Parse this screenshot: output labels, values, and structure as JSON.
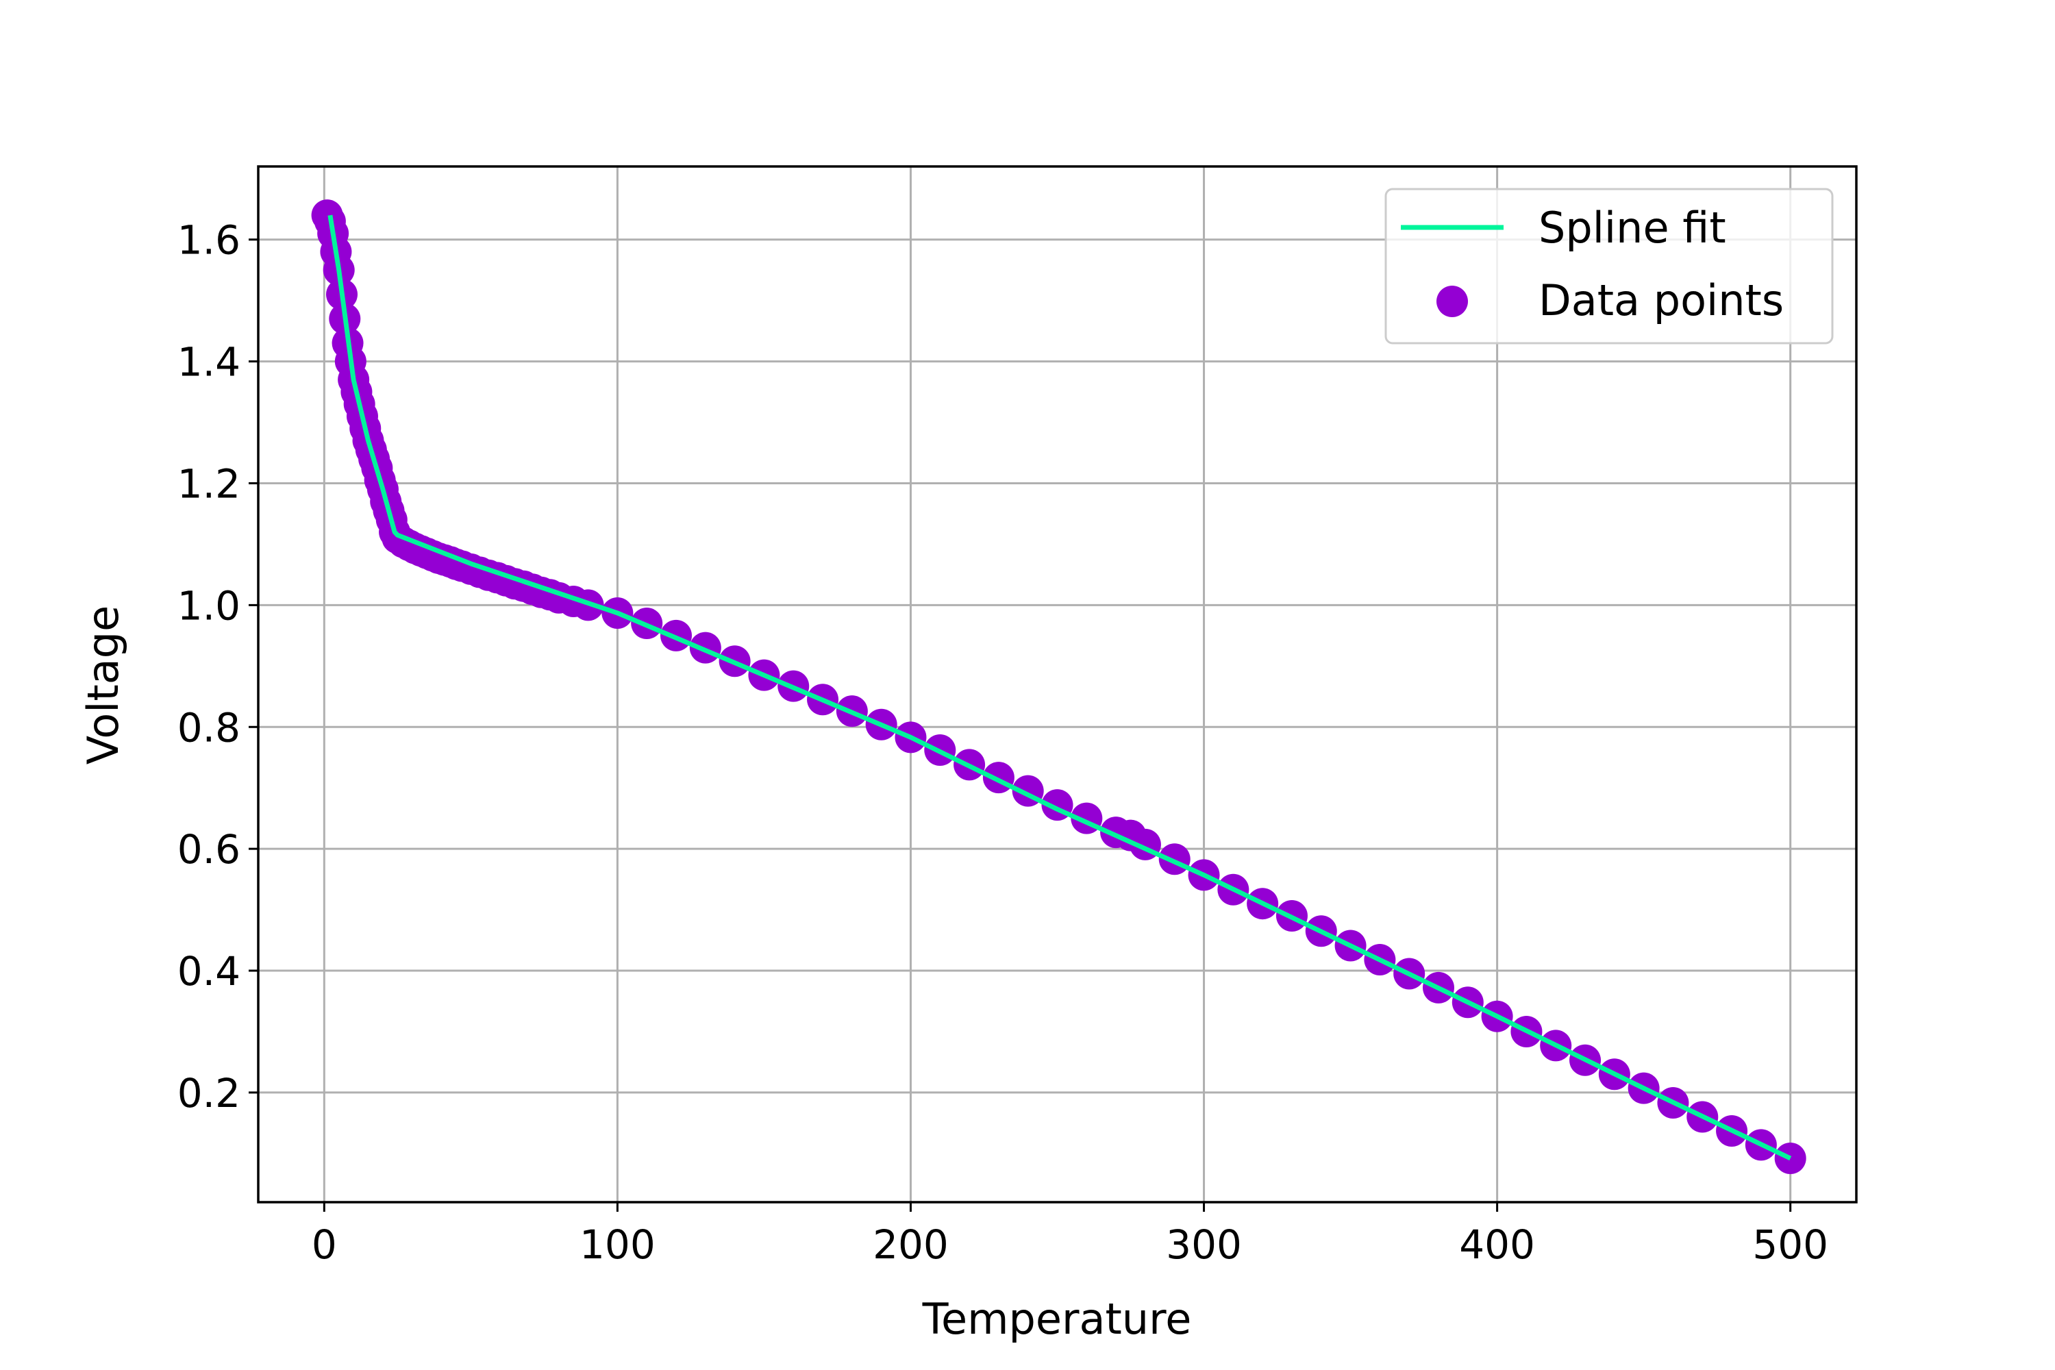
{
  "chart_data": {
    "type": "scatter",
    "title": "",
    "xlabel": "Temperature",
    "ylabel": "Voltage",
    "xlim": [
      -22.5,
      522.5
    ],
    "ylim": [
      0.02,
      1.72
    ],
    "xticks": [
      0,
      100,
      200,
      300,
      400,
      500
    ],
    "yticks": [
      0.2,
      0.4,
      0.6,
      0.8,
      1.0,
      1.2,
      1.4,
      1.6
    ],
    "xtick_labels": [
      "0",
      "100",
      "200",
      "300",
      "400",
      "500"
    ],
    "ytick_labels": [
      "0.2",
      "0.4",
      "0.6",
      "0.8",
      "1.0",
      "1.2",
      "1.4",
      "1.6"
    ],
    "grid": true,
    "legend_position": "top-right",
    "series": [
      {
        "name": "Spline fit",
        "kind": "line",
        "color": "#00f59b",
        "x": [
          2,
          5,
          10,
          15,
          20,
          24,
          25,
          50,
          100,
          150,
          200,
          250,
          300,
          350,
          400,
          450,
          500
        ],
        "y": [
          1.64,
          1.55,
          1.37,
          1.27,
          1.19,
          1.12,
          1.115,
          1.068,
          0.987,
          0.885,
          0.783,
          0.665,
          0.557,
          0.441,
          0.325,
          0.207,
          0.092
        ]
      },
      {
        "name": "Data points",
        "kind": "scatter",
        "color": "#9400d3",
        "x": [
          1,
          2,
          3,
          4,
          5,
          6,
          7,
          8,
          9,
          10,
          11,
          12,
          13,
          14,
          15,
          16,
          17,
          18,
          19,
          20,
          21,
          22,
          23,
          24,
          25,
          27,
          29,
          31,
          33,
          35,
          37,
          39,
          41,
          43,
          45,
          47,
          50,
          53,
          56,
          59,
          62,
          65,
          68,
          71,
          74,
          77,
          80,
          85,
          90,
          100,
          110,
          120,
          130,
          140,
          150,
          160,
          170,
          180,
          190,
          200,
          210,
          220,
          230,
          240,
          250,
          260,
          270,
          275,
          280,
          290,
          300,
          310,
          320,
          330,
          340,
          350,
          360,
          370,
          380,
          390,
          400,
          410,
          420,
          430,
          440,
          450,
          460,
          470,
          480,
          490,
          500
        ],
        "y": [
          1.64,
          1.63,
          1.61,
          1.58,
          1.55,
          1.51,
          1.47,
          1.43,
          1.4,
          1.37,
          1.35,
          1.33,
          1.31,
          1.29,
          1.27,
          1.255,
          1.24,
          1.225,
          1.205,
          1.19,
          1.17,
          1.155,
          1.14,
          1.12,
          1.11,
          1.103,
          1.098,
          1.093,
          1.089,
          1.085,
          1.081,
          1.077,
          1.074,
          1.071,
          1.067,
          1.064,
          1.059,
          1.054,
          1.049,
          1.045,
          1.04,
          1.035,
          1.031,
          1.026,
          1.021,
          1.017,
          1.012,
          1.006,
          1.0,
          0.987,
          0.97,
          0.95,
          0.93,
          0.908,
          0.885,
          0.867,
          0.845,
          0.826,
          0.804,
          0.783,
          0.762,
          0.738,
          0.717,
          0.695,
          0.672,
          0.65,
          0.627,
          0.622,
          0.607,
          0.583,
          0.557,
          0.533,
          0.51,
          0.49,
          0.465,
          0.441,
          0.418,
          0.395,
          0.372,
          0.348,
          0.325,
          0.3,
          0.277,
          0.253,
          0.23,
          0.207,
          0.183,
          0.16,
          0.137,
          0.114,
          0.092
        ]
      }
    ]
  }
}
